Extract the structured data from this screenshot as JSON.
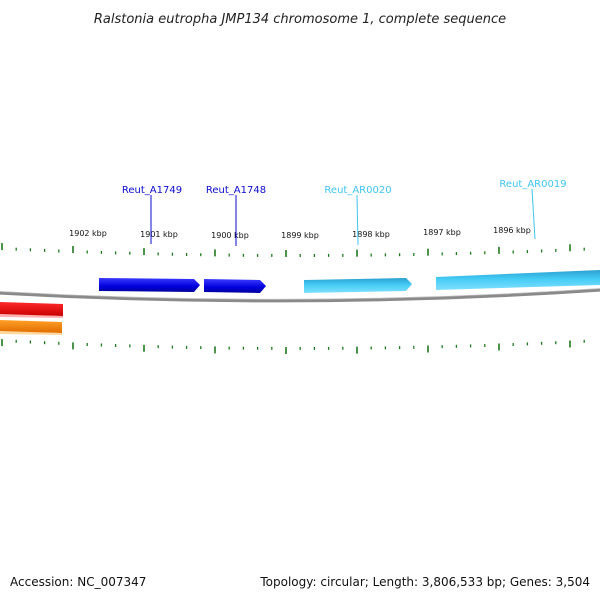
{
  "title": "Ralstonia eutropha JMP134 chromosome 1, complete sequence",
  "footer": {
    "accession": "Accession: NC_007347",
    "summary": "Topology: circular; Length: 3,806,533 bp; Genes: 3,504"
  },
  "scale": {
    "tick_labels": [
      "1902 kbp",
      "1901 kbp",
      "1900 kbp",
      "1899 kbp",
      "1898 kbp",
      "1897 kbp",
      "1896 kbp"
    ]
  },
  "genes": [
    {
      "label": "Reut_A1749",
      "color": "#0b0bd1",
      "strand": "forward"
    },
    {
      "label": "Reut_A1748",
      "color": "#0b0bd1",
      "strand": "forward"
    },
    {
      "label": "Reut_AR0020",
      "color": "#3ec4ee",
      "strand": "forward"
    },
    {
      "label": "Reut_AR0019",
      "color": "#3ec4ee",
      "strand": "forward"
    }
  ],
  "colors": {
    "backbone": "#8a8a8a",
    "ticks": "#1f7a1f",
    "red_feature": "#e01010",
    "orange_feature": "#f08a10"
  }
}
